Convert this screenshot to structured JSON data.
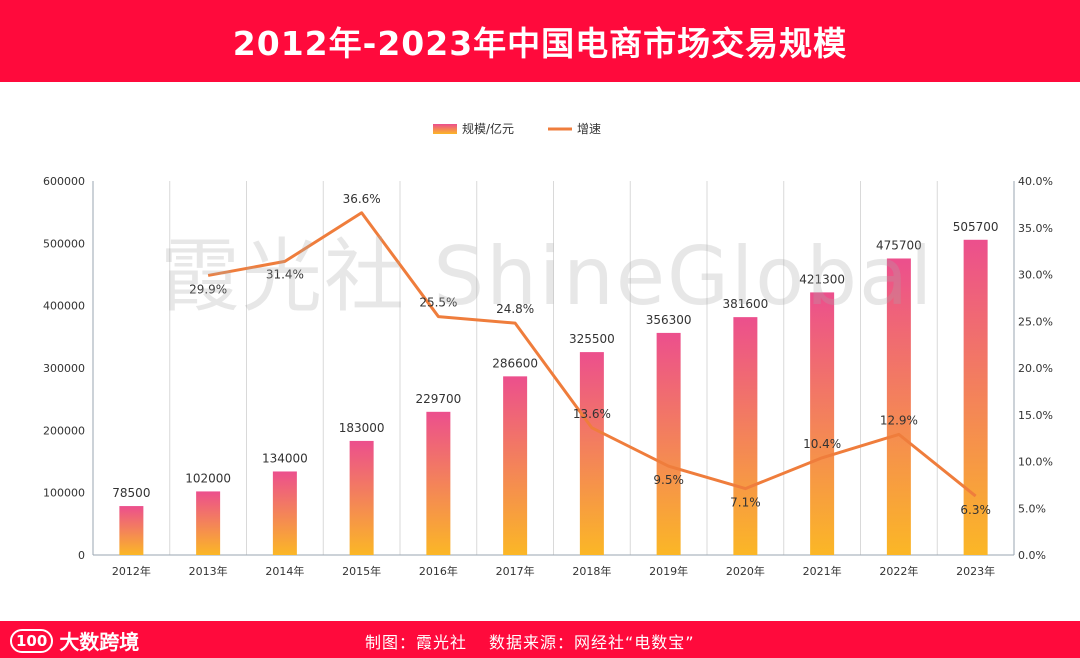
{
  "title": "2012年-2023年中国电商市场交易规模",
  "watermark": "霞光社 ShineGlobal",
  "footer": {
    "logo_mark": "100",
    "logo_text": "大数跨境",
    "credit_chart": "制图：霞光社",
    "credit_source": "数据来源：网经社“电数宝”"
  },
  "colors": {
    "brand": "#ff0a3c",
    "bar_top": "#ec4f8d",
    "bar_bottom": "#fbb726",
    "line": "#ef7d3c"
  },
  "chart_data": {
    "type": "bar",
    "categories": [
      "2012年",
      "2013年",
      "2014年",
      "2015年",
      "2016年",
      "2017年",
      "2018年",
      "2019年",
      "2020年",
      "2021年",
      "2022年",
      "2023年"
    ],
    "series": [
      {
        "name": "规模/亿元",
        "type": "bar",
        "axis": "left",
        "values": [
          78500,
          102000,
          134000,
          183000,
          229700,
          286600,
          325500,
          356300,
          381600,
          421300,
          475700,
          505700
        ],
        "labels": [
          "78500",
          "102000",
          "134000",
          "183000",
          "229700",
          "286600",
          "325500",
          "356300",
          "381600",
          "421300",
          "475700",
          "505700"
        ]
      },
      {
        "name": "增速",
        "type": "line",
        "axis": "right",
        "values": [
          null,
          29.9,
          31.4,
          36.6,
          25.5,
          24.8,
          13.6,
          9.5,
          7.1,
          10.4,
          12.9,
          6.3
        ],
        "labels": [
          "",
          "29.9%",
          "31.4%",
          "36.6%",
          "25.5%",
          "24.8%",
          "13.6%",
          "9.5%",
          "7.1%",
          "10.4%",
          "12.9%",
          "6.3%"
        ]
      }
    ],
    "y_left": {
      "range": [
        0,
        600000
      ],
      "ticks": [
        "0",
        "100000",
        "200000",
        "300000",
        "400000",
        "500000",
        "600000"
      ]
    },
    "y_right": {
      "range": [
        0,
        40
      ],
      "ticks": [
        "0.0%",
        "5.0%",
        "10.0%",
        "15.0%",
        "20.0%",
        "25.0%",
        "30.0%",
        "35.0%",
        "40.0%"
      ]
    },
    "grid": "vertical",
    "legend": "top-center"
  }
}
